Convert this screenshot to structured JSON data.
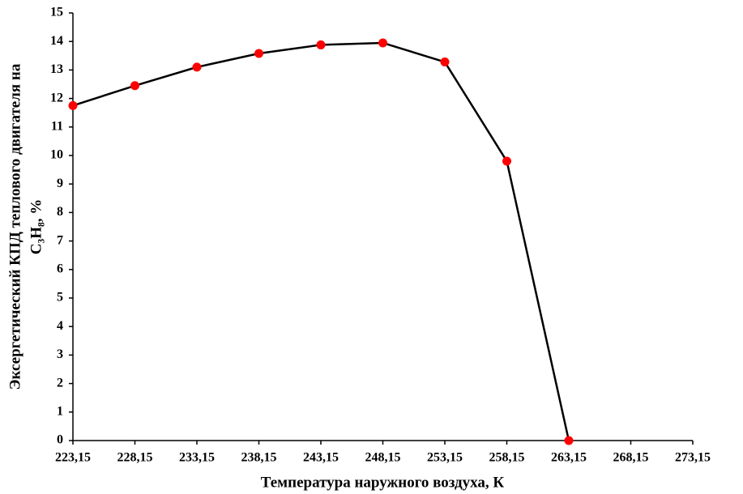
{
  "chart_data": {
    "type": "line",
    "x_label": "Температура наружного воздуха, К",
    "y_label": [
      "Эксергетический КПД теплового двигателя на",
      "C₃H₈, %"
    ],
    "x": [
      223.15,
      228.15,
      233.15,
      238.15,
      243.15,
      248.15,
      253.15,
      258.15,
      263.15
    ],
    "series": [
      {
        "color": "#000000",
        "marker_color": "#ff0000",
        "values": [
          11.75,
          12.45,
          13.1,
          13.58,
          13.88,
          13.95,
          13.28,
          9.8,
          0
        ]
      }
    ],
    "xlim": [
      223.15,
      273.15
    ],
    "xticks": [
      {
        "value": 223.15,
        "label": "223,15"
      },
      {
        "value": 228.15,
        "label": "228,15"
      },
      {
        "value": 233.15,
        "label": "233,15"
      },
      {
        "value": 238.15,
        "label": "238,15"
      },
      {
        "value": 243.15,
        "label": "243,15"
      },
      {
        "value": 248.15,
        "label": "248,15"
      },
      {
        "value": 253.15,
        "label": "253,15"
      },
      {
        "value": 258.15,
        "label": "258,15"
      },
      {
        "value": 263.15,
        "label": "263,15"
      },
      {
        "value": 268.15,
        "label": "268,15"
      },
      {
        "value": 273.15,
        "label": "273,15"
      }
    ],
    "ylim": [
      0,
      15
    ],
    "yticks": [
      0,
      1,
      2,
      3,
      4,
      5,
      6,
      7,
      8,
      9,
      10,
      11,
      12,
      13,
      14,
      15
    ],
    "grid": false
  }
}
